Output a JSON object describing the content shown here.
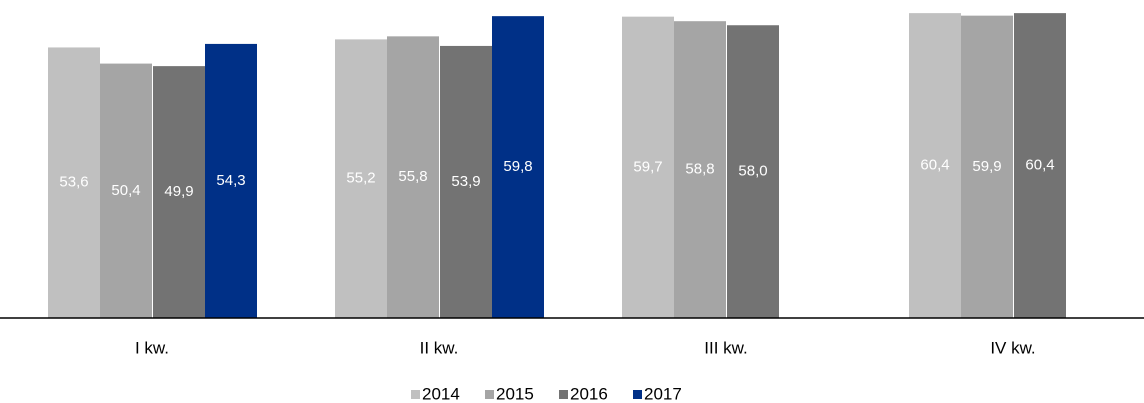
{
  "chart_data": {
    "type": "bar",
    "categories": [
      "I kw.",
      "II kw.",
      "III kw.",
      "IV kw."
    ],
    "series": [
      {
        "name": "2014",
        "color": "#c0c0c0",
        "values": [
          53.6,
          55.2,
          59.7,
          60.4
        ],
        "value_labels": [
          "53,6",
          "55,2",
          "59,7",
          "60,4"
        ]
      },
      {
        "name": "2015",
        "color": "#a5a5a5",
        "values": [
          50.4,
          55.8,
          58.8,
          59.9
        ],
        "value_labels": [
          "50,4",
          "55,8",
          "58,8",
          "59,9"
        ]
      },
      {
        "name": "2016",
        "color": "#737373",
        "values": [
          49.9,
          53.9,
          58.0,
          60.4
        ],
        "value_labels": [
          "49,9",
          "53,9",
          "58,0",
          "60,4"
        ]
      },
      {
        "name": "2017",
        "color": "#003087",
        "values": [
          54.3,
          59.8,
          null,
          null
        ],
        "value_labels": [
          "54,3",
          "59,8",
          null,
          null
        ]
      }
    ],
    "ylim": [
      0,
      63
    ],
    "legend": "bottom"
  }
}
